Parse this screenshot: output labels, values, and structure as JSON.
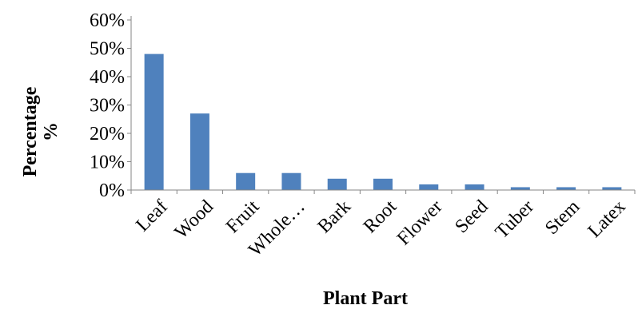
{
  "chart_data": {
    "type": "bar",
    "categories": [
      "Leaf",
      "Wood",
      "Fruit",
      "Whole…",
      "Bark",
      "Root",
      "Flower",
      "Seed",
      "Tuber",
      "Stem",
      "Latex"
    ],
    "values": [
      48,
      27,
      6,
      6,
      4,
      4,
      2,
      2,
      1,
      1,
      1
    ],
    "ylabel_line1": "Percentage",
    "ylabel_line2": "%",
    "xlabel": "Plant Part",
    "y_ticks": [
      "0%",
      "10%",
      "20%",
      "30%",
      "40%",
      "50%",
      "60%"
    ],
    "ylim": [
      0,
      60
    ],
    "grid": false,
    "legend": "none",
    "bar_color": "#4f81bd"
  }
}
